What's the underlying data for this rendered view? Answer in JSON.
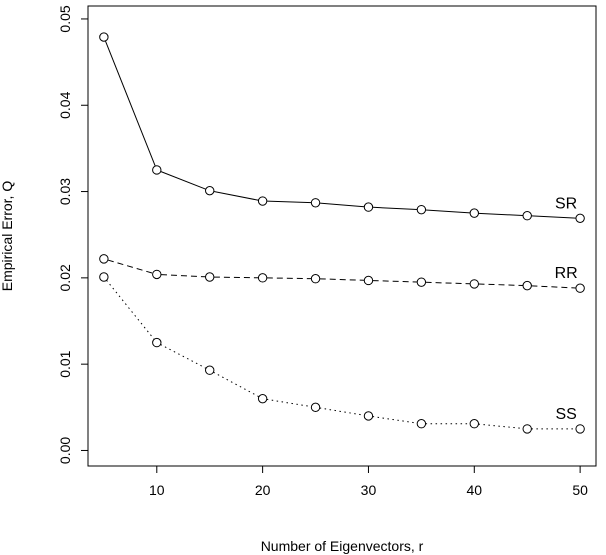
{
  "chart_data": {
    "type": "line",
    "title": "",
    "xlabel": "Number of Eigenvectors, r",
    "ylabel": "Empirical Error, Q",
    "xlim": [
      3.5,
      51.5
    ],
    "ylim": [
      -0.0018,
      0.0515
    ],
    "xticks": [
      10,
      20,
      30,
      40,
      50
    ],
    "xtick_labels": [
      "10",
      "20",
      "30",
      "40",
      "50"
    ],
    "yticks": [
      0.0,
      0.01,
      0.02,
      0.03,
      0.04,
      0.05
    ],
    "ytick_labels": [
      "0.00",
      "0.01",
      "0.02",
      "0.03",
      "0.04",
      "0.05"
    ],
    "grid": false,
    "x": [
      5,
      10,
      15,
      20,
      25,
      30,
      35,
      40,
      45,
      50
    ],
    "series": [
      {
        "name": "SR",
        "line_style": "solid",
        "values": [
          0.0479,
          0.0325,
          0.0301,
          0.0289,
          0.0287,
          0.0282,
          0.0279,
          0.0275,
          0.0272,
          0.0269
        ]
      },
      {
        "name": "RR",
        "line_style": "dashed",
        "values": [
          0.0222,
          0.0204,
          0.0201,
          0.02,
          0.0199,
          0.0197,
          0.0195,
          0.0193,
          0.0191,
          0.0188
        ]
      },
      {
        "name": "SS",
        "line_style": "dotted",
        "values": [
          0.0201,
          0.0125,
          0.0093,
          0.006,
          0.005,
          0.004,
          0.0031,
          0.0031,
          0.0025,
          0.0025
        ]
      }
    ]
  }
}
